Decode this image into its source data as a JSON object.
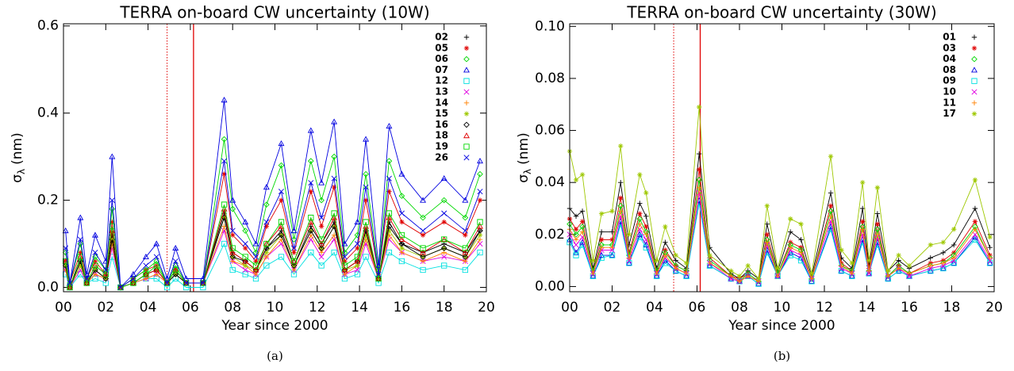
{
  "chart_data": [
    {
      "type": "line",
      "title": "TERRA on-board CW uncertainty (10W)",
      "xlabel": "Year since 2000",
      "ylabel": {
        "symbol": "σ",
        "sub": "λ",
        "unit": "(nm)"
      },
      "caption": "(a)",
      "xlim": [
        0,
        20
      ],
      "ylim": [
        -0.01,
        0.605
      ],
      "xticks": [
        {
          "value": 0,
          "label": "00"
        },
        {
          "value": 2,
          "label": "02"
        },
        {
          "value": 4,
          "label": "04"
        },
        {
          "value": 6,
          "label": "06"
        },
        {
          "value": 8,
          "label": "08"
        },
        10,
        12,
        14,
        16,
        18,
        20
      ],
      "yticks": [
        {
          "value": 0,
          "label": "0.0"
        },
        0.2,
        0.4,
        0.6
      ],
      "vlines": [
        {
          "x": 4.9,
          "style": "dotted",
          "color": "#e00000"
        },
        {
          "x": 6.15,
          "style": "solid",
          "color": "#e00000"
        }
      ],
      "x": [
        0.1,
        0.3,
        0.8,
        1.1,
        1.5,
        2.0,
        2.3,
        2.7,
        3.3,
        3.9,
        4.4,
        4.9,
        5.3,
        5.8,
        6.6,
        7.6,
        8.0,
        8.6,
        9.1,
        9.6,
        10.3,
        10.9,
        11.7,
        12.2,
        12.8,
        13.3,
        13.9,
        14.3,
        14.9,
        15.4,
        16.0,
        17.0,
        18.0,
        19.0,
        19.7
      ],
      "series": [
        {
          "name": "02",
          "color": "#000000",
          "marker": "plus",
          "values": [
            0.05,
            0.0,
            0.06,
            0.01,
            0.04,
            0.02,
            0.12,
            0.0,
            0.01,
            0.03,
            0.04,
            0.01,
            0.03,
            0.01,
            0.01,
            0.17,
            0.08,
            0.06,
            0.04,
            0.09,
            0.13,
            0.05,
            0.14,
            0.1,
            0.15,
            0.04,
            0.06,
            0.13,
            0.02,
            0.15,
            0.1,
            0.08,
            0.1,
            0.08,
            0.13
          ]
        },
        {
          "name": "05",
          "color": "#e00000",
          "marker": "asterisk",
          "values": [
            0.06,
            0.01,
            0.08,
            0.02,
            0.06,
            0.03,
            0.15,
            0.0,
            0.02,
            0.04,
            0.05,
            0.01,
            0.04,
            0.01,
            0.01,
            0.26,
            0.12,
            0.09,
            0.06,
            0.14,
            0.2,
            0.08,
            0.22,
            0.14,
            0.23,
            0.06,
            0.09,
            0.2,
            0.03,
            0.22,
            0.15,
            0.12,
            0.15,
            0.12,
            0.2
          ]
        },
        {
          "name": "06",
          "color": "#00d800",
          "marker": "diamond",
          "values": [
            0.08,
            0.01,
            0.1,
            0.02,
            0.07,
            0.04,
            0.18,
            0.0,
            0.02,
            0.04,
            0.06,
            0.01,
            0.05,
            0.01,
            0.01,
            0.34,
            0.18,
            0.13,
            0.08,
            0.19,
            0.28,
            0.11,
            0.29,
            0.2,
            0.3,
            0.08,
            0.12,
            0.26,
            0.04,
            0.29,
            0.21,
            0.16,
            0.2,
            0.16,
            0.26
          ]
        },
        {
          "name": "07",
          "color": "#0000e0",
          "marker": "triangle",
          "values": [
            0.13,
            0.01,
            0.16,
            0.03,
            0.12,
            0.06,
            0.3,
            0.0,
            0.03,
            0.07,
            0.1,
            0.02,
            0.09,
            0.02,
            0.02,
            0.43,
            0.2,
            0.15,
            0.1,
            0.23,
            0.33,
            0.13,
            0.36,
            0.24,
            0.38,
            0.1,
            0.15,
            0.34,
            0.05,
            0.37,
            0.26,
            0.2,
            0.25,
            0.2,
            0.29
          ]
        },
        {
          "name": "12",
          "color": "#00e0e0",
          "marker": "square",
          "values": [
            0.03,
            0.0,
            0.03,
            0.01,
            0.02,
            0.01,
            0.07,
            0.0,
            0.01,
            0.02,
            0.02,
            0.0,
            0.02,
            0.0,
            0.0,
            0.1,
            0.04,
            0.03,
            0.02,
            0.05,
            0.07,
            0.03,
            0.08,
            0.05,
            0.08,
            0.02,
            0.03,
            0.07,
            0.01,
            0.08,
            0.06,
            0.04,
            0.05,
            0.04,
            0.08
          ]
        },
        {
          "name": "13",
          "color": "#e000e0",
          "marker": "x",
          "values": [
            0.04,
            0.0,
            0.04,
            0.01,
            0.03,
            0.02,
            0.09,
            0.0,
            0.01,
            0.02,
            0.03,
            0.01,
            0.03,
            0.01,
            0.01,
            0.13,
            0.06,
            0.04,
            0.03,
            0.07,
            0.1,
            0.04,
            0.11,
            0.07,
            0.11,
            0.03,
            0.04,
            0.1,
            0.02,
            0.11,
            0.08,
            0.06,
            0.07,
            0.06,
            0.1
          ]
        },
        {
          "name": "14",
          "color": "#ff8000",
          "marker": "plus",
          "values": [
            0.04,
            0.0,
            0.05,
            0.01,
            0.03,
            0.02,
            0.1,
            0.0,
            0.01,
            0.02,
            0.03,
            0.01,
            0.03,
            0.01,
            0.01,
            0.14,
            0.06,
            0.05,
            0.03,
            0.07,
            0.11,
            0.04,
            0.12,
            0.08,
            0.12,
            0.03,
            0.05,
            0.11,
            0.02,
            0.12,
            0.08,
            0.06,
            0.08,
            0.06,
            0.11
          ]
        },
        {
          "name": "15",
          "color": "#9ec800",
          "marker": "asterisk",
          "values": [
            0.05,
            0.0,
            0.05,
            0.01,
            0.04,
            0.02,
            0.11,
            0.0,
            0.01,
            0.03,
            0.04,
            0.01,
            0.03,
            0.01,
            0.01,
            0.16,
            0.07,
            0.05,
            0.04,
            0.08,
            0.12,
            0.05,
            0.13,
            0.09,
            0.14,
            0.04,
            0.05,
            0.12,
            0.02,
            0.13,
            0.09,
            0.07,
            0.09,
            0.07,
            0.12
          ]
        },
        {
          "name": "16",
          "color": "#000000",
          "marker": "diamond",
          "values": [
            0.05,
            0.0,
            0.06,
            0.01,
            0.04,
            0.02,
            0.11,
            0.0,
            0.01,
            0.03,
            0.04,
            0.01,
            0.03,
            0.01,
            0.01,
            0.16,
            0.07,
            0.06,
            0.04,
            0.09,
            0.12,
            0.05,
            0.13,
            0.09,
            0.14,
            0.04,
            0.06,
            0.13,
            0.02,
            0.14,
            0.1,
            0.07,
            0.09,
            0.07,
            0.13
          ]
        },
        {
          "name": "18",
          "color": "#e00000",
          "marker": "triangle",
          "values": [
            0.06,
            0.0,
            0.07,
            0.01,
            0.05,
            0.03,
            0.13,
            0.0,
            0.01,
            0.03,
            0.04,
            0.01,
            0.04,
            0.01,
            0.01,
            0.18,
            0.08,
            0.06,
            0.04,
            0.1,
            0.14,
            0.06,
            0.15,
            0.1,
            0.16,
            0.04,
            0.06,
            0.14,
            0.02,
            0.16,
            0.11,
            0.08,
            0.11,
            0.08,
            0.14
          ]
        },
        {
          "name": "19",
          "color": "#00d800",
          "marker": "square",
          "values": [
            0.06,
            0.0,
            0.07,
            0.01,
            0.05,
            0.03,
            0.14,
            0.0,
            0.01,
            0.03,
            0.05,
            0.01,
            0.04,
            0.01,
            0.01,
            0.19,
            0.09,
            0.07,
            0.05,
            0.1,
            0.15,
            0.06,
            0.16,
            0.11,
            0.17,
            0.05,
            0.07,
            0.15,
            0.02,
            0.17,
            0.12,
            0.09,
            0.11,
            0.09,
            0.15
          ]
        },
        {
          "name": "26",
          "color": "#0000e0",
          "marker": "x",
          "values": [
            0.09,
            0.01,
            0.11,
            0.02,
            0.08,
            0.04,
            0.2,
            0.0,
            0.02,
            0.05,
            0.07,
            0.01,
            0.06,
            0.01,
            0.01,
            0.29,
            0.13,
            0.1,
            0.07,
            0.15,
            0.22,
            0.09,
            0.24,
            0.16,
            0.25,
            0.07,
            0.1,
            0.23,
            0.03,
            0.25,
            0.17,
            0.13,
            0.17,
            0.13,
            0.22
          ]
        }
      ]
    },
    {
      "type": "line",
      "title": "TERRA on-board CW uncertainty (30W)",
      "xlabel": "Year since 2000",
      "ylabel": {
        "symbol": "σ",
        "sub": "λ",
        "unit": "(nm)"
      },
      "caption": "(b)",
      "xlim": [
        0,
        20
      ],
      "ylim": [
        -0.002,
        0.101
      ],
      "xticks": [
        {
          "value": 0,
          "label": "00"
        },
        {
          "value": 2,
          "label": "02"
        },
        {
          "value": 4,
          "label": "04"
        },
        {
          "value": 6,
          "label": "06"
        },
        {
          "value": 8,
          "label": "08"
        },
        10,
        12,
        14,
        16,
        18,
        20
      ],
      "yticks": [
        {
          "value": 0,
          "label": "0.00"
        },
        0.02,
        0.04,
        0.06,
        0.08,
        {
          "value": 0.1,
          "label": "0.10"
        }
      ],
      "vlines": [
        {
          "x": 4.9,
          "style": "dotted",
          "color": "#e00000"
        },
        {
          "x": 6.15,
          "style": "solid",
          "color": "#e00000"
        }
      ],
      "x": [
        0.0,
        0.3,
        0.6,
        1.1,
        1.5,
        2.0,
        2.4,
        2.8,
        3.3,
        3.6,
        4.1,
        4.5,
        5.0,
        5.5,
        6.1,
        6.6,
        7.6,
        8.0,
        8.4,
        8.9,
        9.3,
        9.8,
        10.4,
        10.9,
        11.4,
        12.3,
        12.8,
        13.3,
        13.8,
        14.1,
        14.5,
        15.0,
        15.5,
        16.0,
        17.0,
        17.6,
        18.1,
        19.1,
        19.8
      ],
      "series": [
        {
          "name": "01",
          "color": "#000000",
          "marker": "plus",
          "values": [
            0.03,
            0.027,
            0.029,
            0.007,
            0.021,
            0.021,
            0.04,
            0.016,
            0.032,
            0.027,
            0.007,
            0.017,
            0.01,
            0.007,
            0.051,
            0.015,
            0.005,
            0.003,
            0.006,
            0.003,
            0.024,
            0.006,
            0.021,
            0.018,
            0.004,
            0.036,
            0.011,
            0.007,
            0.03,
            0.008,
            0.028,
            0.006,
            0.01,
            0.007,
            0.011,
            0.013,
            0.016,
            0.03,
            0.015
          ]
        },
        {
          "name": "03",
          "color": "#e00000",
          "marker": "asterisk",
          "values": [
            0.026,
            0.022,
            0.025,
            0.006,
            0.018,
            0.018,
            0.034,
            0.013,
            0.028,
            0.023,
            0.006,
            0.014,
            0.008,
            0.006,
            0.045,
            0.011,
            0.004,
            0.003,
            0.005,
            0.002,
            0.02,
            0.005,
            0.017,
            0.015,
            0.003,
            0.031,
            0.009,
            0.006,
            0.025,
            0.007,
            0.024,
            0.004,
            0.008,
            0.005,
            0.009,
            0.01,
            0.013,
            0.025,
            0.012
          ]
        },
        {
          "name": "04",
          "color": "#00d800",
          "marker": "diamond",
          "values": [
            0.024,
            0.02,
            0.023,
            0.006,
            0.016,
            0.016,
            0.031,
            0.012,
            0.026,
            0.021,
            0.006,
            0.013,
            0.008,
            0.006,
            0.041,
            0.01,
            0.004,
            0.002,
            0.005,
            0.002,
            0.018,
            0.005,
            0.016,
            0.014,
            0.003,
            0.029,
            0.008,
            0.006,
            0.023,
            0.006,
            0.022,
            0.004,
            0.008,
            0.005,
            0.008,
            0.009,
            0.012,
            0.023,
            0.011
          ]
        },
        {
          "name": "08",
          "color": "#0000e0",
          "marker": "triangle",
          "values": [
            0.018,
            0.013,
            0.017,
            0.004,
            0.012,
            0.012,
            0.025,
            0.009,
            0.02,
            0.016,
            0.004,
            0.01,
            0.006,
            0.004,
            0.033,
            0.008,
            0.003,
            0.002,
            0.004,
            0.001,
            0.014,
            0.004,
            0.013,
            0.011,
            0.002,
            0.023,
            0.006,
            0.004,
            0.018,
            0.005,
            0.017,
            0.003,
            0.006,
            0.004,
            0.006,
            0.007,
            0.009,
            0.019,
            0.009
          ]
        },
        {
          "name": "09",
          "color": "#00e0e0",
          "marker": "square",
          "values": [
            0.017,
            0.012,
            0.016,
            0.004,
            0.011,
            0.012,
            0.024,
            0.009,
            0.019,
            0.015,
            0.004,
            0.009,
            0.006,
            0.004,
            0.032,
            0.008,
            0.003,
            0.002,
            0.004,
            0.001,
            0.013,
            0.004,
            0.012,
            0.01,
            0.002,
            0.022,
            0.006,
            0.004,
            0.017,
            0.005,
            0.016,
            0.003,
            0.006,
            0.004,
            0.006,
            0.007,
            0.009,
            0.018,
            0.009
          ]
        },
        {
          "name": "10",
          "color": "#e000e0",
          "marker": "x",
          "values": [
            0.02,
            0.016,
            0.019,
            0.005,
            0.014,
            0.014,
            0.027,
            0.01,
            0.022,
            0.018,
            0.005,
            0.011,
            0.007,
            0.005,
            0.036,
            0.009,
            0.003,
            0.002,
            0.004,
            0.002,
            0.016,
            0.004,
            0.014,
            0.012,
            0.003,
            0.025,
            0.007,
            0.005,
            0.02,
            0.005,
            0.019,
            0.004,
            0.007,
            0.004,
            0.007,
            0.008,
            0.01,
            0.02,
            0.01
          ]
        },
        {
          "name": "11",
          "color": "#ff8000",
          "marker": "plus",
          "values": [
            0.022,
            0.018,
            0.021,
            0.005,
            0.015,
            0.015,
            0.029,
            0.011,
            0.024,
            0.02,
            0.005,
            0.012,
            0.007,
            0.005,
            0.038,
            0.009,
            0.004,
            0.002,
            0.004,
            0.002,
            0.017,
            0.004,
            0.015,
            0.013,
            0.003,
            0.027,
            0.008,
            0.005,
            0.022,
            0.006,
            0.02,
            0.004,
            0.007,
            0.005,
            0.008,
            0.009,
            0.011,
            0.022,
            0.011
          ]
        },
        {
          "name": "17",
          "color": "#9ec800",
          "marker": "asterisk",
          "values": [
            0.052,
            0.041,
            0.043,
            0.01,
            0.028,
            0.029,
            0.054,
            0.02,
            0.043,
            0.036,
            0.01,
            0.023,
            0.012,
            0.009,
            0.069,
            0.012,
            0.006,
            0.004,
            0.008,
            0.003,
            0.031,
            0.007,
            0.026,
            0.024,
            0.005,
            0.05,
            0.014,
            0.009,
            0.04,
            0.01,
            0.038,
            0.006,
            0.012,
            0.008,
            0.016,
            0.017,
            0.022,
            0.041,
            0.019
          ]
        }
      ]
    }
  ]
}
